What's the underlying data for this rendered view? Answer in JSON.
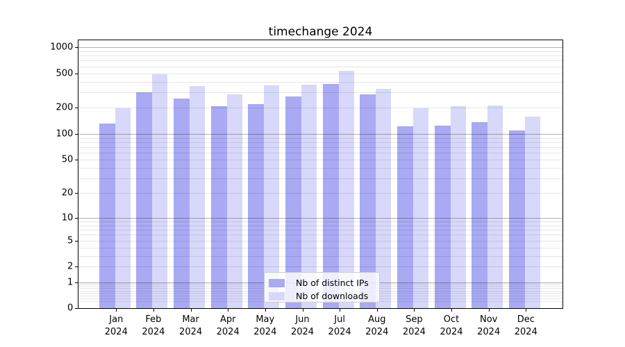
{
  "title": "timechange 2024",
  "legend": {
    "position": "lower center",
    "items": [
      {
        "label": "Nb of distinct IPs",
        "color": "#a9a9f4"
      },
      {
        "label": "Nb of downloads",
        "color": "#d8d8fa"
      }
    ]
  },
  "axes": {
    "yticks": [
      0,
      1,
      2,
      5,
      10,
      20,
      50,
      100,
      200,
      500,
      1000
    ],
    "x_year_label": "2024"
  },
  "chart_data": {
    "type": "bar",
    "title": "timechange 2024",
    "categories": [
      "Jan",
      "Feb",
      "Mar",
      "Apr",
      "May",
      "Jun",
      "Jul",
      "Aug",
      "Sep",
      "Oct",
      "Nov",
      "Dec"
    ],
    "x_sublabel": "2024",
    "series": [
      {
        "name": "Nb of distinct IPs",
        "color": "#a9a9f4",
        "values": [
          133,
          300,
          255,
          210,
          220,
          269,
          379,
          285,
          122,
          125,
          137,
          110
        ]
      },
      {
        "name": "Nb of downloads",
        "color": "#d8d8fa",
        "values": [
          197,
          490,
          355,
          285,
          363,
          368,
          535,
          329,
          198,
          209,
          214,
          159
        ]
      }
    ],
    "xlabel": "",
    "ylabel": "",
    "yscale": "log10(1+value)",
    "ylim": [
      0,
      1200
    ],
    "ytick_labels": [
      "0",
      "1",
      "2",
      "5",
      "10",
      "20",
      "50",
      "100",
      "200",
      "500",
      "1000"
    ],
    "grid": "both",
    "legend_position": "lower center"
  }
}
